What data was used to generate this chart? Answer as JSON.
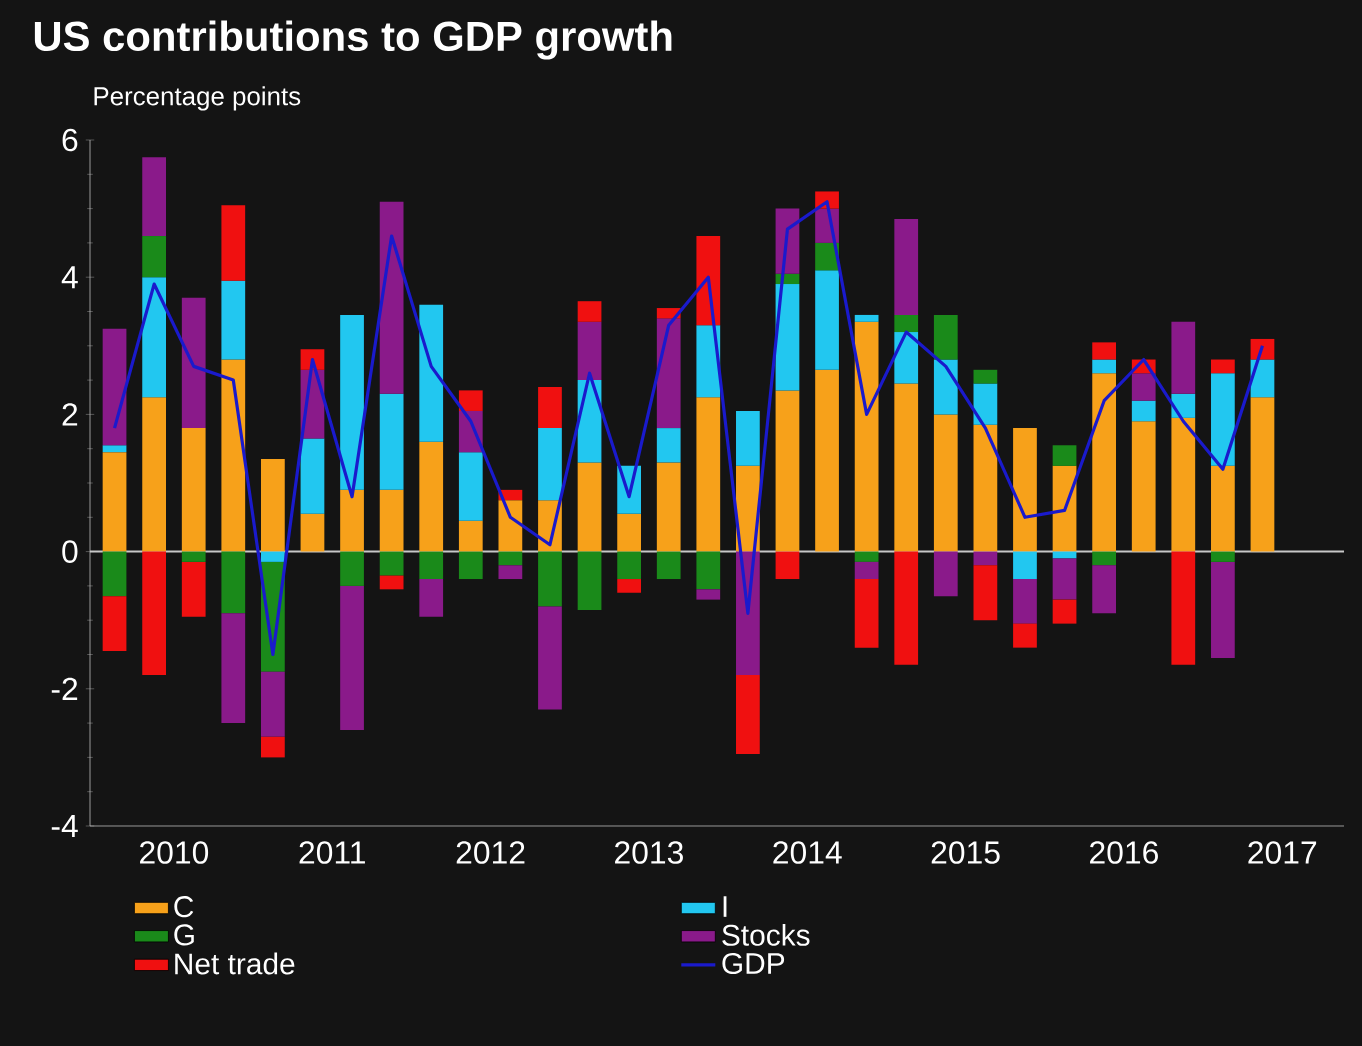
{
  "chart_data": {
    "type": "bar",
    "stacked": true,
    "title": "US contributions to GDP growth",
    "ylabel": "Percentage points",
    "x": [
      2010.125,
      2010.375,
      2010.625,
      2010.875,
      2011.125,
      2011.375,
      2011.625,
      2011.875,
      2012.125,
      2012.375,
      2012.625,
      2012.875,
      2013.125,
      2013.375,
      2013.625,
      2013.875,
      2014.125,
      2014.375,
      2014.625,
      2014.875,
      2015.125,
      2015.375,
      2015.625,
      2015.875,
      2016.125,
      2016.375,
      2016.625,
      2016.875,
      2017.125,
      2017.375
    ],
    "xlim": [
      2009.97,
      2017.89
    ],
    "xticks": [
      {
        "value": 2010.5,
        "label": "2010"
      },
      {
        "value": 2011.5,
        "label": "2011"
      },
      {
        "value": 2012.5,
        "label": "2012"
      },
      {
        "value": 2013.5,
        "label": "2013"
      },
      {
        "value": 2014.5,
        "label": "2014"
      },
      {
        "value": 2015.5,
        "label": "2015"
      },
      {
        "value": 2016.5,
        "label": "2016"
      },
      {
        "value": 2017.5,
        "label": "2017"
      }
    ],
    "ylim": [
      -4,
      6
    ],
    "yticks": [
      -4,
      -2,
      0,
      2,
      4,
      6
    ],
    "legend": "bottom",
    "ref_lines": [
      {
        "axis": "y",
        "value": 0,
        "color": "#c8c8c8"
      }
    ],
    "series": [
      {
        "name": "C",
        "color": "#f7a11a",
        "values": [
          1.45,
          2.25,
          1.8,
          2.8,
          1.35,
          0.55,
          0.9,
          0.9,
          1.6,
          0.45,
          0.75,
          0.75,
          1.3,
          0.55,
          1.3,
          2.25,
          1.25,
          2.35,
          2.65,
          3.35,
          2.45,
          2.0,
          1.85,
          1.8,
          1.25,
          2.6,
          1.9,
          1.95,
          1.25,
          2.25
        ]
      },
      {
        "name": "I",
        "color": "#22c7f0",
        "values": [
          0.1,
          1.75,
          0,
          1.15,
          -0.15,
          1.1,
          2.55,
          1.4,
          2.0,
          1.0,
          0,
          1.05,
          1.2,
          0.7,
          0.5,
          1.05,
          0.8,
          1.55,
          1.45,
          0.1,
          0.75,
          0.8,
          0.6,
          -0.4,
          -0.1,
          0.2,
          0.3,
          0.35,
          1.35,
          0.55
        ]
      },
      {
        "name": "G",
        "color": "#1a8a1a",
        "values": [
          -0.65,
          0.6,
          -0.15,
          -0.9,
          -1.6,
          0,
          -0.5,
          -0.35,
          -0.4,
          -0.4,
          -0.2,
          -0.8,
          -0.85,
          -0.4,
          -0.4,
          -0.55,
          0,
          0.15,
          0.4,
          -0.15,
          0.25,
          0.65,
          0.2,
          0,
          0.3,
          -0.2,
          0,
          0,
          -0.15,
          0
        ]
      },
      {
        "name": "Stocks",
        "color": "#8a1a8a",
        "values": [
          1.7,
          1.15,
          1.9,
          -1.6,
          -0.95,
          1.0,
          -2.1,
          2.8,
          -0.55,
          0.6,
          -0.2,
          -1.5,
          0.85,
          0,
          1.6,
          -0.15,
          -1.8,
          0.95,
          0.5,
          -0.25,
          1.4,
          -0.65,
          -0.2,
          -0.65,
          -0.6,
          -0.7,
          0.4,
          1.05,
          -1.4,
          0
        ]
      },
      {
        "name": "Net trade",
        "color": "#f01010",
        "values": [
          -0.8,
          -1.8,
          -0.8,
          1.1,
          -0.3,
          0.3,
          0,
          -0.2,
          0,
          0.3,
          0.15,
          0.6,
          0.3,
          -0.2,
          0.15,
          1.3,
          -1.15,
          -0.4,
          0.25,
          -1.0,
          -1.65,
          0,
          -0.8,
          -0.35,
          -0.35,
          0.25,
          0.2,
          -1.65,
          0.2,
          0.3
        ]
      },
      {
        "name": "GDP",
        "type": "line",
        "color": "#1a1acc",
        "values": [
          1.8,
          3.9,
          2.7,
          2.5,
          -1.5,
          2.8,
          0.8,
          4.6,
          2.7,
          1.9,
          0.5,
          0.1,
          2.6,
          0.8,
          3.3,
          4.0,
          -0.9,
          4.7,
          5.1,
          2.0,
          3.2,
          2.7,
          1.8,
          0.5,
          0.6,
          2.2,
          2.8,
          1.9,
          1.2,
          3.0
        ]
      }
    ]
  }
}
